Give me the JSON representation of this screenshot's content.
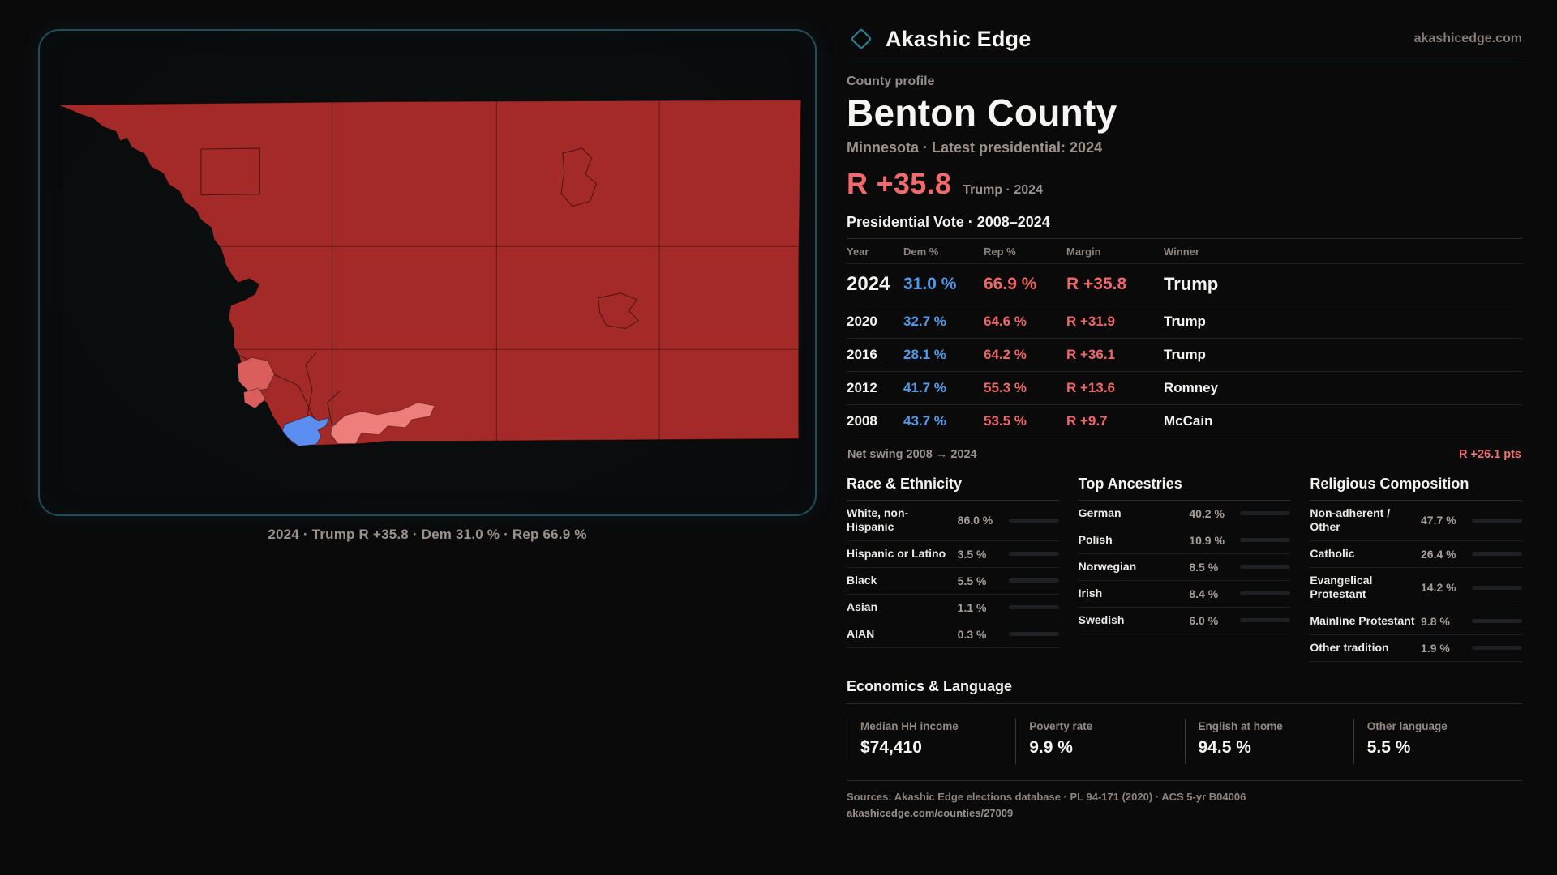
{
  "brand": {
    "name": "Akashic Edge",
    "domain": "akashicedge.com"
  },
  "profile": {
    "kicker": "County profile",
    "title": "Benton County",
    "subtitle": "Minnesota · Latest presidential: 2024",
    "headline": {
      "margin": "R +35.8",
      "note": "Trump · 2024"
    }
  },
  "map": {
    "caption": "2024 · Trump R +35.8 · Dem 31.0 % · Rep 66.9 %",
    "colors": {
      "rep_strong": "#a32a28",
      "rep_lean": "#da5f5c",
      "rep_light": "#ee7e7b",
      "dem": "#5b8cf0",
      "frame": "#1d4f5a"
    }
  },
  "vote_history": {
    "title": "Presidential Vote · 2008–2024",
    "columns": [
      "Year",
      "Dem %",
      "Rep %",
      "Margin",
      "Winner"
    ],
    "rows": [
      {
        "year": "2024",
        "dem": "31.0 %",
        "rep": "66.9 %",
        "margin": "R +35.8",
        "winner": "Trump",
        "highlight": true
      },
      {
        "year": "2020",
        "dem": "32.7 %",
        "rep": "64.6 %",
        "margin": "R +31.9",
        "winner": "Trump",
        "highlight": false
      },
      {
        "year": "2016",
        "dem": "28.1 %",
        "rep": "64.2 %",
        "margin": "R +36.1",
        "winner": "Trump",
        "highlight": false
      },
      {
        "year": "2012",
        "dem": "41.7 %",
        "rep": "55.3 %",
        "margin": "R +13.6",
        "winner": "Romney",
        "highlight": false
      },
      {
        "year": "2008",
        "dem": "43.7 %",
        "rep": "53.5 %",
        "margin": "R +9.7",
        "winner": "McCain",
        "highlight": false
      }
    ],
    "net_swing": {
      "label": "Net swing 2008 → 2024",
      "value": "R +26.1 pts"
    }
  },
  "stats_columns": [
    {
      "id": "race",
      "title": "Race & Ethnicity",
      "rows": [
        {
          "label": "White, non-Hispanic",
          "value": "86.0 %",
          "pct": 86.0,
          "color": "#93aac6"
        },
        {
          "label": "Hispanic or Latino",
          "value": "3.5 %",
          "pct": 3.5,
          "color": "#e6952f"
        },
        {
          "label": "Black",
          "value": "5.5 %",
          "pct": 5.5,
          "color": "#8b73e8"
        },
        {
          "label": "Asian",
          "value": "1.1 %",
          "pct": 1.1,
          "color": "#2fc27e"
        },
        {
          "label": "AIAN",
          "value": "0.3 %",
          "pct": 0.3,
          "color": "#d97a2a"
        }
      ]
    },
    {
      "id": "ancestries",
      "title": "Top Ancestries",
      "rows": [
        {
          "label": "German",
          "value": "40.2 %",
          "pct": 40.2,
          "color": "#9db5cf"
        },
        {
          "label": "Polish",
          "value": "10.9 %",
          "pct": 10.9,
          "color": "#9db5cf"
        },
        {
          "label": "Norwegian",
          "value": "8.5 %",
          "pct": 8.5,
          "color": "#9db5cf"
        },
        {
          "label": "Irish",
          "value": "8.4 %",
          "pct": 8.4,
          "color": "#9db5cf"
        },
        {
          "label": "Swedish",
          "value": "6.0 %",
          "pct": 6.0,
          "color": "#9db5cf"
        }
      ]
    },
    {
      "id": "religion",
      "title": "Religious Composition",
      "rows": [
        {
          "label": "Non-adherent / Other",
          "value": "47.7 %",
          "pct": 47.7,
          "color": "#7f8da3"
        },
        {
          "label": "Catholic",
          "value": "26.4 %",
          "pct": 26.4,
          "color": "#e2a72e"
        },
        {
          "label": "Evangelical Protestant",
          "value": "14.2 %",
          "pct": 14.2,
          "color": "#e36a6a"
        },
        {
          "label": "Mainline Protestant",
          "value": "9.8 %",
          "pct": 9.8,
          "color": "#5b93e8"
        },
        {
          "label": "Other tradition",
          "value": "1.9 %",
          "pct": 1.9,
          "color": "#d8d4d0"
        }
      ]
    }
  ],
  "economics": {
    "title": "Economics & Language",
    "stats": [
      {
        "label": "Median HH income",
        "value": "$74,410"
      },
      {
        "label": "Poverty rate",
        "value": "9.9 %"
      },
      {
        "label": "English at home",
        "value": "94.5 %"
      },
      {
        "label": "Other language",
        "value": "5.5 %"
      }
    ]
  },
  "footer": {
    "sources": "Sources: Akashic Edge elections database · PL 94-171 (2020) · ACS 5-yr B04006",
    "permalink": "akashicedge.com/counties/27009"
  },
  "chart_data": [
    {
      "type": "table",
      "title": "Presidential Vote · 2008–2024",
      "columns": [
        "Year",
        "Dem %",
        "Rep %",
        "Margin",
        "Winner"
      ],
      "rows": [
        [
          "2024",
          31.0,
          66.9,
          "R +35.8",
          "Trump"
        ],
        [
          "2020",
          32.7,
          64.6,
          "R +31.9",
          "Trump"
        ],
        [
          "2016",
          28.1,
          64.2,
          "R +36.1",
          "Trump"
        ],
        [
          "2012",
          41.7,
          55.3,
          "R +13.6",
          "Romney"
        ],
        [
          "2008",
          43.7,
          53.5,
          "R +9.7",
          "McCain"
        ]
      ],
      "note": "Net swing 2008 → 2024: R +26.1 pts"
    },
    {
      "type": "bar",
      "orientation": "horizontal",
      "title": "Race & Ethnicity",
      "unit": "%",
      "xlim": [
        0,
        100
      ],
      "categories": [
        "White, non-Hispanic",
        "Hispanic or Latino",
        "Black",
        "Asian",
        "AIAN"
      ],
      "values": [
        86.0,
        3.5,
        5.5,
        1.1,
        0.3
      ]
    },
    {
      "type": "bar",
      "orientation": "horizontal",
      "title": "Top Ancestries",
      "unit": "%",
      "xlim": [
        0,
        100
      ],
      "categories": [
        "German",
        "Polish",
        "Norwegian",
        "Irish",
        "Swedish"
      ],
      "values": [
        40.2,
        10.9,
        8.5,
        8.4,
        6.0
      ]
    },
    {
      "type": "bar",
      "orientation": "horizontal",
      "title": "Religious Composition",
      "unit": "%",
      "xlim": [
        0,
        100
      ],
      "categories": [
        "Non-adherent / Other",
        "Catholic",
        "Evangelical Protestant",
        "Mainline Protestant",
        "Other tradition"
      ],
      "values": [
        47.7,
        26.4,
        14.2,
        9.8,
        1.9
      ]
    }
  ]
}
